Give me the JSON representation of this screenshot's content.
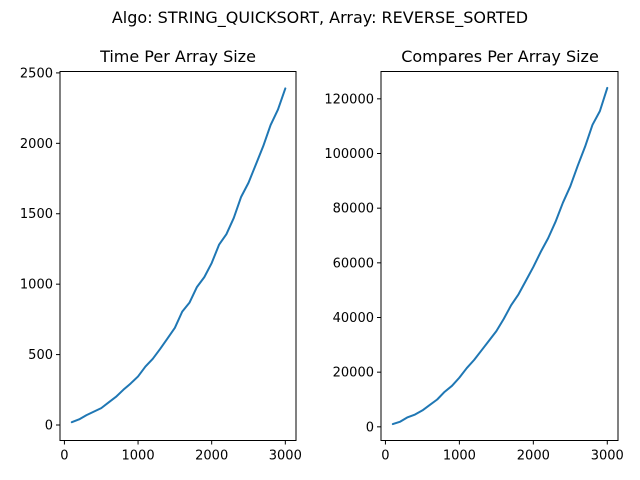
{
  "figure": {
    "suptitle": "Algo: STRING_QUICKSORT, Array: REVERSE_SORTED",
    "line_color": "#1f77b4"
  },
  "chart_data": [
    {
      "type": "line",
      "title": "Time Per Array Size",
      "xlabel": "",
      "ylabel": "",
      "xlim": [
        -60,
        3145
      ],
      "ylim": [
        -110,
        2510
      ],
      "xticks": [
        0,
        1000,
        2000,
        3000
      ],
      "yticks": [
        0,
        500,
        1000,
        1500,
        2000,
        2500
      ],
      "grid": false,
      "series": [
        {
          "x": [
            100,
            200,
            300,
            400,
            500,
            600,
            700,
            800,
            900,
            1000,
            1100,
            1200,
            1300,
            1400,
            1500,
            1600,
            1700,
            1800,
            1900,
            2000,
            2100,
            2200,
            2300,
            2400,
            2500,
            2600,
            2700,
            2800,
            2900,
            3000
          ],
          "y": [
            20,
            40,
            70,
            95,
            120,
            160,
            200,
            250,
            295,
            345,
            415,
            470,
            540,
            615,
            690,
            805,
            870,
            980,
            1050,
            1150,
            1280,
            1355,
            1470,
            1620,
            1720,
            1850,
            1980,
            2130,
            2240,
            2390
          ]
        }
      ]
    },
    {
      "type": "line",
      "title": "Compares Per Array Size",
      "xlabel": "",
      "ylabel": "",
      "xlim": [
        -60,
        3145
      ],
      "ylim": [
        -5000,
        130000
      ],
      "xticks": [
        0,
        1000,
        2000,
        3000
      ],
      "yticks": [
        0,
        20000,
        40000,
        60000,
        80000,
        100000,
        120000
      ],
      "grid": false,
      "series": [
        {
          "x": [
            100,
            200,
            300,
            400,
            500,
            600,
            700,
            800,
            900,
            1000,
            1100,
            1200,
            1300,
            1400,
            1500,
            1600,
            1700,
            1800,
            1900,
            2000,
            2100,
            2200,
            2300,
            2400,
            2500,
            2600,
            2700,
            2800,
            2900,
            3000
          ],
          "y": [
            1000,
            1900,
            3500,
            4500,
            6000,
            8000,
            10000,
            12800,
            15000,
            18000,
            21500,
            24500,
            28000,
            31500,
            35000,
            39500,
            44500,
            48500,
            53500,
            58500,
            64000,
            69000,
            75000,
            82000,
            88000,
            95500,
            102500,
            110500,
            115500,
            124000
          ]
        }
      ]
    }
  ]
}
